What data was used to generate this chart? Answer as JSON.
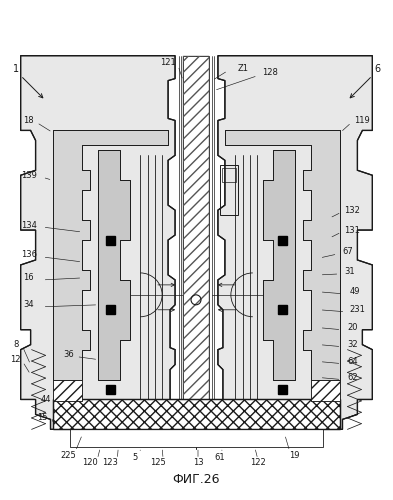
{
  "title": "ФИГ.26",
  "bg": "#f0f0f0",
  "lc": "#1a1a1a",
  "fig_w": 3.93,
  "fig_h": 5.0,
  "dpi": 100
}
